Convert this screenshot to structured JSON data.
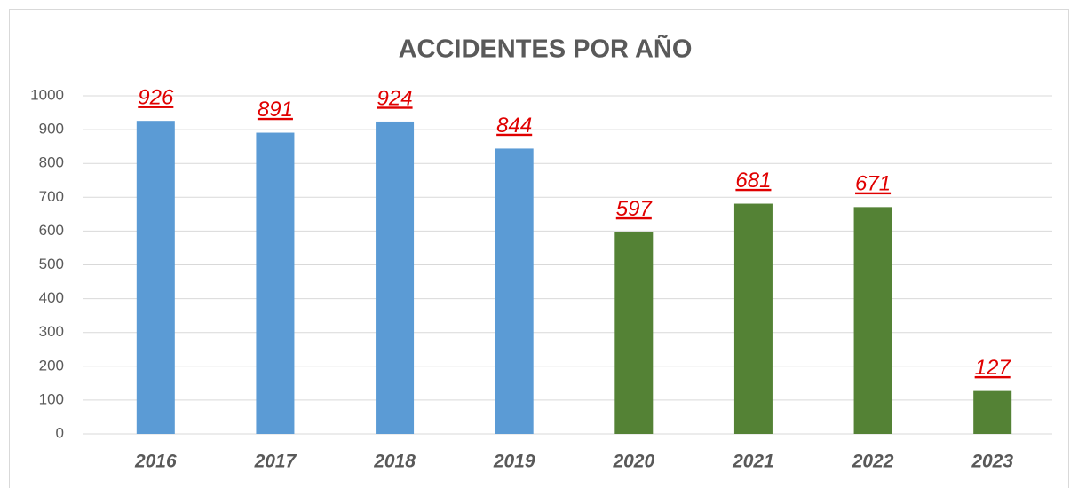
{
  "chart_data": {
    "type": "bar",
    "title": "ACCIDENTES POR AÑO",
    "categories": [
      "2016",
      "2017",
      "2018",
      "2019",
      "2020",
      "2021",
      "2022",
      "2023"
    ],
    "values": [
      926,
      891,
      924,
      844,
      597,
      681,
      671,
      127
    ],
    "colors": [
      "#5b9bd5",
      "#5b9bd5",
      "#5b9bd5",
      "#5b9bd5",
      "#548235",
      "#548235",
      "#548235",
      "#548235"
    ],
    "ylim": [
      0,
      1000
    ],
    "yticks": [
      0,
      100,
      200,
      300,
      400,
      500,
      600,
      700,
      800,
      900,
      1000
    ],
    "grid": true
  }
}
